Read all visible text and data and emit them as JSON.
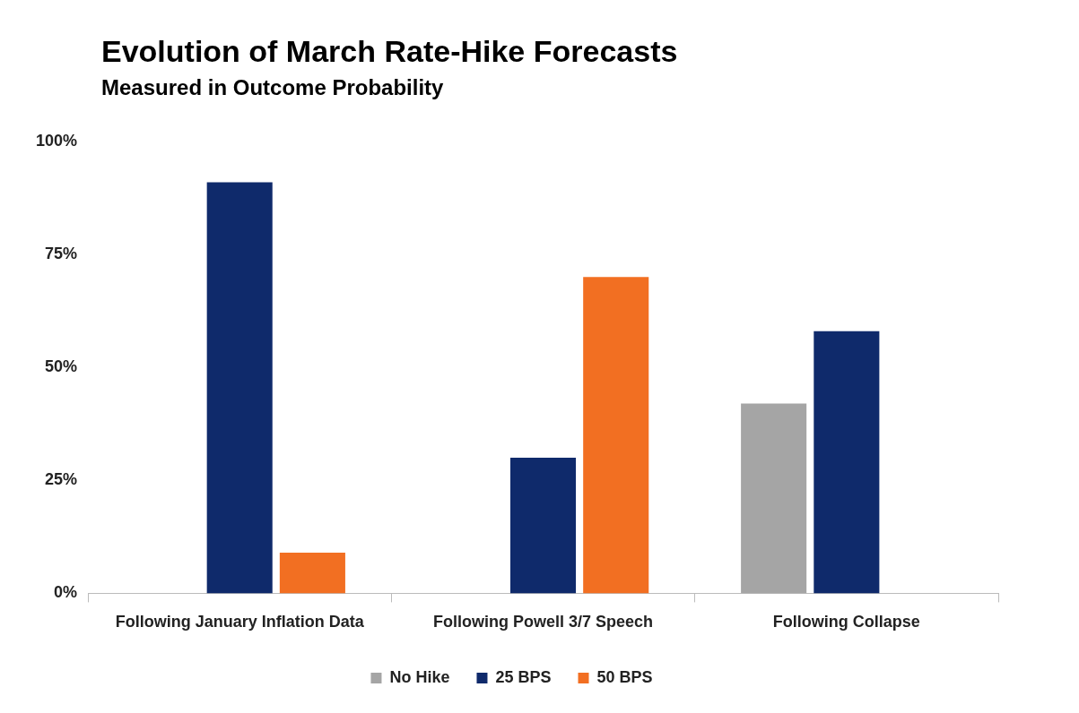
{
  "chart_data": {
    "type": "bar",
    "title": "Evolution of March Rate-Hike Forecasts",
    "subtitle": "Measured in Outcome Probability",
    "categories": [
      "Following January Inflation Data",
      "Following Powell 3/7 Speech",
      "Following Collapse"
    ],
    "series": [
      {
        "name": "No Hike",
        "color": "#a5a5a5",
        "values": [
          0,
          0,
          42
        ]
      },
      {
        "name": "25 BPS",
        "color": "#0f2a6b",
        "values": [
          91,
          30,
          58
        ]
      },
      {
        "name": "50 BPS",
        "color": "#f26f22",
        "values": [
          9,
          70,
          0
        ]
      }
    ],
    "ylim": [
      0,
      100
    ],
    "yticks": [
      {
        "value": 0,
        "label": "0%"
      },
      {
        "value": 25,
        "label": "25%"
      },
      {
        "value": 50,
        "label": "50%"
      },
      {
        "value": 75,
        "label": "75%"
      },
      {
        "value": 100,
        "label": "100%"
      }
    ],
    "grid": false,
    "legend": "bottom"
  }
}
